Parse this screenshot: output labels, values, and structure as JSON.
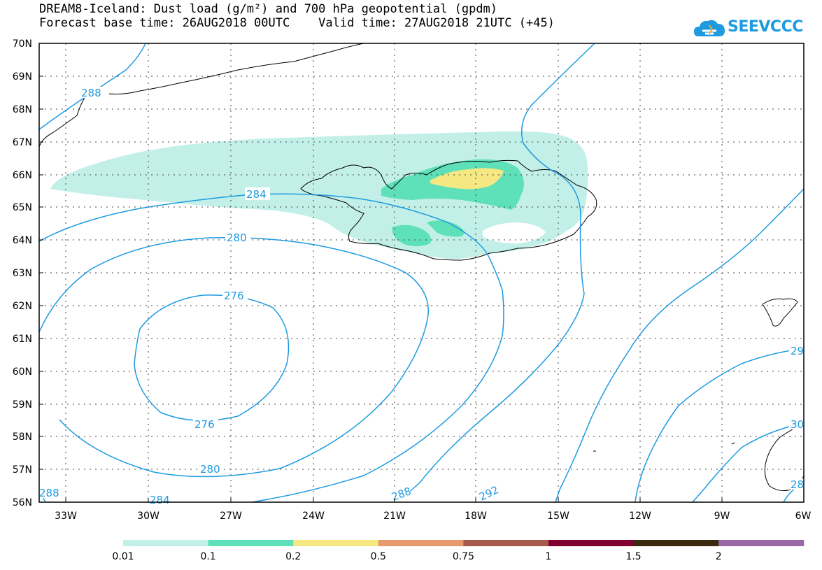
{
  "header": {
    "title_line1": "DREAM8-Iceland: Dust load (g/m²) and 700 hPa geopotential (gpdm)",
    "title_line2": "Forecast base time: 26AUG2018 00UTC    Valid time: 27AUG2018 21UTC (+45)"
  },
  "logo": {
    "text": "SEEVCCC",
    "color": "#1e9be0"
  },
  "map": {
    "lat_labels": [
      "70N",
      "69N",
      "68N",
      "67N",
      "66N",
      "65N",
      "64N",
      "63N",
      "62N",
      "61N",
      "60N",
      "59N",
      "58N",
      "57N",
      "56N"
    ],
    "lon_labels": [
      "33W",
      "30W",
      "27W",
      "24W",
      "21W",
      "18W",
      "15W",
      "12W",
      "9W",
      "6W"
    ],
    "contour_labels": [
      "288",
      "284",
      "280",
      "276",
      "276",
      "280",
      "284",
      "288",
      "288",
      "292",
      "29",
      "30",
      "28"
    ],
    "contour_color": "#1e9be0",
    "coastline_color": "#000000"
  },
  "legend": {
    "colors": [
      "#c2f0e8",
      "#5ee0b8",
      "#f5e882",
      "#e89a6e",
      "#a85a4a",
      "#800030",
      "#3a2a10",
      "#9a6aa8"
    ],
    "labels": [
      "0.01",
      "0.1",
      "0.2",
      "0.5",
      "0.75",
      "1",
      "1.5",
      "2"
    ]
  }
}
